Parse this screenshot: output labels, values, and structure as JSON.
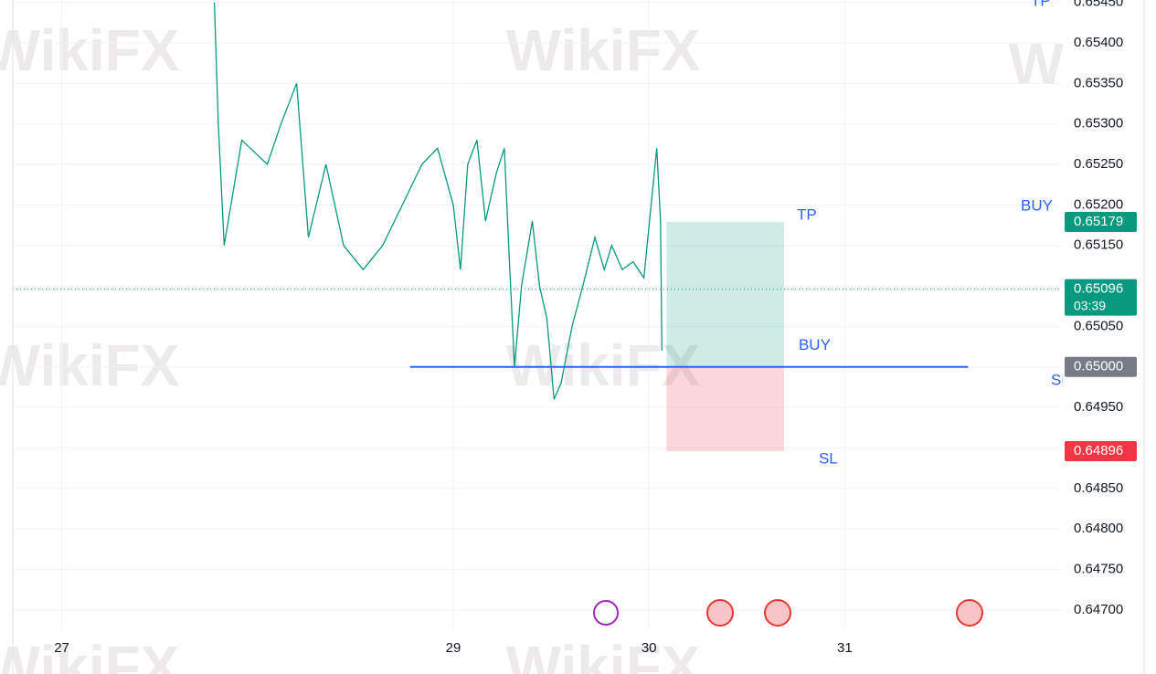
{
  "watermark": "WikiFX",
  "chart_data": {
    "type": "line",
    "color": "#089981",
    "x": [
      27.78,
      27.8,
      27.83,
      27.92,
      28.05,
      28.12,
      28.2,
      28.26,
      28.35,
      28.44,
      28.54,
      28.64,
      28.74,
      28.84,
      28.92,
      29.0,
      29.037,
      29.074,
      29.121,
      29.165,
      29.221,
      29.261,
      29.283,
      29.313,
      29.349,
      29.404,
      29.441,
      29.478,
      29.515,
      29.551,
      29.607,
      29.662,
      29.724,
      29.772,
      29.809,
      29.864,
      29.919,
      29.974,
      30.011,
      30.04,
      30.059,
      30.066
    ],
    "values": [
      0.6545,
      0.653,
      0.6515,
      0.6528,
      0.6525,
      0.653,
      0.6535,
      0.6516,
      0.6525,
      0.6515,
      0.6512,
      0.6515,
      0.652,
      0.6525,
      0.6527,
      0.652,
      0.6512,
      0.6525,
      0.6528,
      0.6518,
      0.6524,
      0.6527,
      0.6515,
      0.65,
      0.651,
      0.6518,
      0.651,
      0.6506,
      0.6496,
      0.6498,
      0.6505,
      0.651,
      0.6516,
      0.6512,
      0.6515,
      0.6512,
      0.6513,
      0.6511,
      0.652,
      0.6527,
      0.6518,
      0.6502
    ],
    "xlim": [
      26.75,
      32.1
    ],
    "xticks": [
      27,
      29,
      30,
      31
    ],
    "ylim": [
      0.64675,
      0.65453
    ],
    "yticks": [
      {
        "value": 0.6545,
        "label": "0.65450"
      },
      {
        "value": 0.654,
        "label": "0.65400"
      },
      {
        "value": 0.6535,
        "label": "0.65350"
      },
      {
        "value": 0.653,
        "label": "0.65300"
      },
      {
        "value": 0.6525,
        "label": "0.65250"
      },
      {
        "value": 0.652,
        "label": "0.65200"
      },
      {
        "value": 0.6515,
        "label": "0.65150"
      },
      {
        "value": 0.651,
        "label": "0.65100"
      },
      {
        "value": 0.6505,
        "label": "0.65050"
      },
      {
        "value": 0.65,
        "label": "0.65000"
      },
      {
        "value": 0.6495,
        "label": "0.64950"
      },
      {
        "value": 0.649,
        "label": "0.64900"
      },
      {
        "value": 0.6485,
        "label": "0.64850"
      },
      {
        "value": 0.648,
        "label": "0.64800"
      },
      {
        "value": 0.6475,
        "label": "0.64750"
      },
      {
        "value": 0.647,
        "label": "0.64700"
      }
    ],
    "grid": true,
    "position": {
      "entry": 0.65,
      "tp": 0.65179,
      "sl": 0.64896,
      "x": [
        30.09,
        30.69
      ],
      "line_x": [
        28.78,
        31.63
      ],
      "labels": {
        "tp": "TP",
        "buy": "BUY",
        "sl": "SL"
      }
    },
    "current_price": {
      "value": 0.65096,
      "label": "0.65096",
      "timer": "03:39"
    },
    "price_tags": [
      {
        "value": 0.65179,
        "label": "0.65179",
        "color": "#089981"
      },
      {
        "value": 0.65,
        "label": "0.65000",
        "color": "#787b86"
      },
      {
        "value": 0.64896,
        "label": "0.64896",
        "color": "#f23645"
      }
    ]
  }
}
